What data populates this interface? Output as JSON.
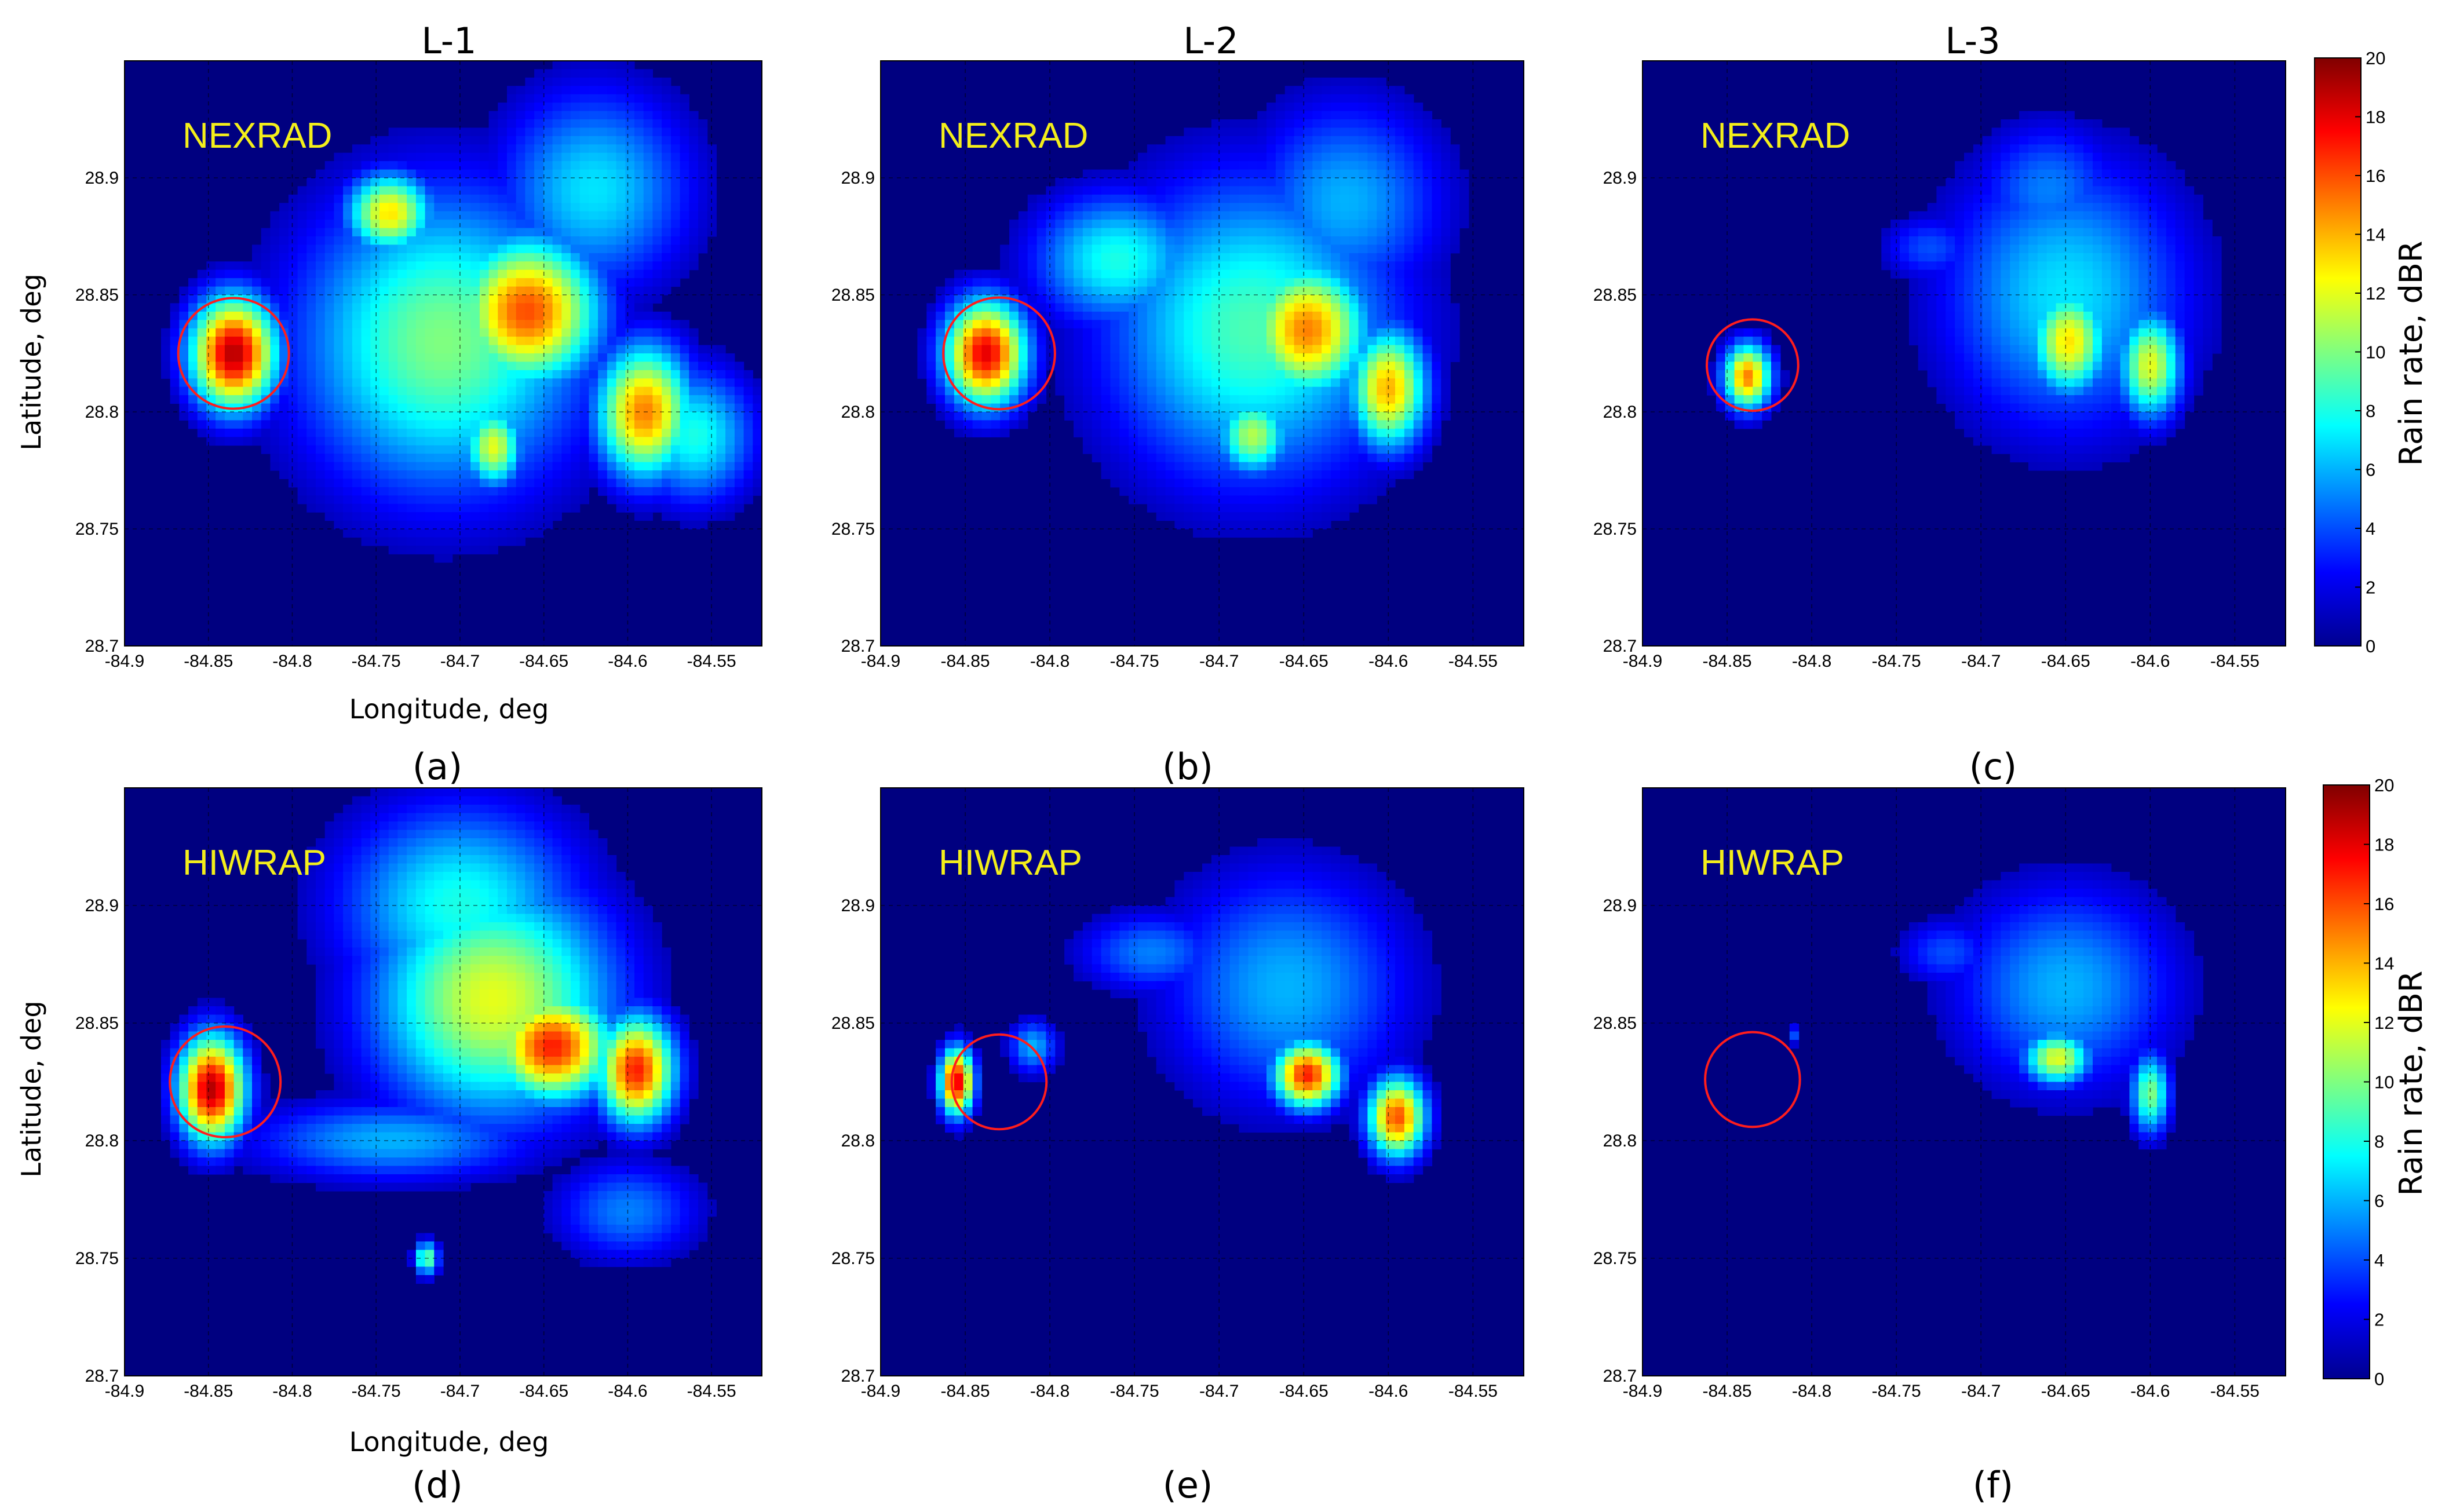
{
  "figure": {
    "columns": [
      "L-1",
      "L-2",
      "L-3"
    ],
    "panel_labels": [
      "(a)",
      "(b)",
      "(c)",
      "(d)",
      "(e)",
      "(f)"
    ],
    "sensors": [
      "NEXRAD",
      "NEXRAD",
      "NEXRAD",
      "HIWRAP",
      "HIWRAP",
      "HIWRAP"
    ],
    "xlabel": "Longitude, deg",
    "ylabel": "Latitude, deg",
    "colorbar_label": "Rain rate, dBR",
    "colorbar_ticks": [
      "0",
      "2",
      "4",
      "6",
      "8",
      "10",
      "12",
      "14",
      "16",
      "18",
      "20"
    ],
    "x_ticks": [
      "-84.9",
      "-84.85",
      "-84.8",
      "-84.75",
      "-84.7",
      "-84.65",
      "-84.6",
      "-84.55"
    ],
    "y_ticks": [
      "28.7",
      "28.75",
      "28.8",
      "28.85",
      "28.9"
    ]
  },
  "chart_data": [
    {
      "type": "heatmap",
      "panel": "(a)",
      "title": "L-1",
      "sensor": "NEXRAD",
      "xlabel": "Longitude, deg",
      "ylabel": "Latitude, deg",
      "xlim": [
        -84.9,
        -84.52
      ],
      "ylim": [
        28.7,
        28.95
      ],
      "zlim": [
        0,
        20
      ],
      "grid": true,
      "colorbar": "Rain rate, dBR",
      "circle": {
        "lon": -84.835,
        "lat": 28.825,
        "radius_deg": 0.033
      },
      "cells": [
        {
          "lon": -84.835,
          "lat": 28.825,
          "value": 19,
          "sx": 0.018,
          "sy": 0.017
        },
        {
          "lon": -84.742,
          "lat": 28.885,
          "value": 13,
          "sx": 0.018,
          "sy": 0.012
        },
        {
          "lon": -84.66,
          "lat": 28.843,
          "value": 16,
          "sx": 0.03,
          "sy": 0.022
        },
        {
          "lon": -84.59,
          "lat": 28.8,
          "value": 15,
          "sx": 0.02,
          "sy": 0.02
        },
        {
          "lon": -84.68,
          "lat": 28.785,
          "value": 12,
          "sx": 0.012,
          "sy": 0.012
        },
        {
          "lon": -84.71,
          "lat": 28.83,
          "value": 10,
          "sx": 0.06,
          "sy": 0.045
        },
        {
          "lon": -84.62,
          "lat": 28.895,
          "value": 7,
          "sx": 0.04,
          "sy": 0.03
        },
        {
          "lon": -84.56,
          "lat": 28.79,
          "value": 8,
          "sx": 0.025,
          "sy": 0.02
        }
      ]
    },
    {
      "type": "heatmap",
      "panel": "(b)",
      "title": "L-2",
      "sensor": "NEXRAD",
      "xlabel": "",
      "ylabel": "",
      "xlim": [
        -84.9,
        -84.52
      ],
      "ylim": [
        28.7,
        28.95
      ],
      "zlim": [
        0,
        20
      ],
      "grid": true,
      "circle": {
        "lon": -84.83,
        "lat": 28.825,
        "radius_deg": 0.033
      },
      "cells": [
        {
          "lon": -84.838,
          "lat": 28.825,
          "value": 18,
          "sx": 0.017,
          "sy": 0.016
        },
        {
          "lon": -84.648,
          "lat": 28.835,
          "value": 15,
          "sx": 0.025,
          "sy": 0.02
        },
        {
          "lon": -84.6,
          "lat": 28.81,
          "value": 14,
          "sx": 0.016,
          "sy": 0.018
        },
        {
          "lon": -84.68,
          "lat": 28.835,
          "value": 9,
          "sx": 0.06,
          "sy": 0.045
        },
        {
          "lon": -84.68,
          "lat": 28.79,
          "value": 11,
          "sx": 0.015,
          "sy": 0.012
        },
        {
          "lon": -84.625,
          "lat": 28.89,
          "value": 6,
          "sx": 0.04,
          "sy": 0.03
        },
        {
          "lon": -84.76,
          "lat": 28.865,
          "value": 8,
          "sx": 0.035,
          "sy": 0.02
        }
      ]
    },
    {
      "type": "heatmap",
      "panel": "(c)",
      "title": "L-3",
      "sensor": "NEXRAD",
      "xlabel": "",
      "ylabel": "",
      "xlim": [
        -84.9,
        -84.52
      ],
      "ylim": [
        28.7,
        28.95
      ],
      "zlim": [
        0,
        20
      ],
      "grid": true,
      "colorbar": "Rain rate, dBR",
      "circle": {
        "lon": -84.835,
        "lat": 28.82,
        "radius_deg": 0.027
      },
      "cells": [
        {
          "lon": -84.838,
          "lat": 28.815,
          "value": 15,
          "sx": 0.01,
          "sy": 0.01
        },
        {
          "lon": -84.648,
          "lat": 28.83,
          "value": 13,
          "sx": 0.016,
          "sy": 0.016
        },
        {
          "lon": -84.6,
          "lat": 28.82,
          "value": 12,
          "sx": 0.013,
          "sy": 0.016
        },
        {
          "lon": -84.65,
          "lat": 28.85,
          "value": 7,
          "sx": 0.05,
          "sy": 0.04
        },
        {
          "lon": -84.66,
          "lat": 28.895,
          "value": 5,
          "sx": 0.03,
          "sy": 0.02
        },
        {
          "lon": -84.73,
          "lat": 28.87,
          "value": 4,
          "sx": 0.02,
          "sy": 0.01
        }
      ]
    },
    {
      "type": "heatmap",
      "panel": "(d)",
      "title": "",
      "sensor": "HIWRAP",
      "xlabel": "Longitude, deg",
      "ylabel": "Latitude, deg",
      "xlim": [
        -84.9,
        -84.52
      ],
      "ylim": [
        28.7,
        28.95
      ],
      "zlim": [
        0,
        20
      ],
      "grid": true,
      "circle": {
        "lon": -84.84,
        "lat": 28.825,
        "radius_deg": 0.033
      },
      "cells": [
        {
          "lon": -84.848,
          "lat": 28.822,
          "value": 19,
          "sx": 0.014,
          "sy": 0.016
        },
        {
          "lon": -84.645,
          "lat": 28.84,
          "value": 17,
          "sx": 0.025,
          "sy": 0.016
        },
        {
          "lon": -84.595,
          "lat": 28.83,
          "value": 17,
          "sx": 0.016,
          "sy": 0.016
        },
        {
          "lon": -84.68,
          "lat": 28.86,
          "value": 12,
          "sx": 0.05,
          "sy": 0.035
        },
        {
          "lon": -84.7,
          "lat": 28.9,
          "value": 8,
          "sx": 0.05,
          "sy": 0.03
        },
        {
          "lon": -84.74,
          "lat": 28.8,
          "value": 6,
          "sx": 0.06,
          "sy": 0.012
        },
        {
          "lon": -84.72,
          "lat": 28.75,
          "value": 10,
          "sx": 0.005,
          "sy": 0.005
        },
        {
          "lon": -84.6,
          "lat": 28.77,
          "value": 5,
          "sx": 0.03,
          "sy": 0.015
        }
      ]
    },
    {
      "type": "heatmap",
      "panel": "(e)",
      "title": "",
      "sensor": "HIWRAP",
      "xlabel": "",
      "ylabel": "",
      "xlim": [
        -84.9,
        -84.52
      ],
      "ylim": [
        28.7,
        28.95
      ],
      "zlim": [
        0,
        20
      ],
      "grid": true,
      "circle": {
        "lon": -84.83,
        "lat": 28.825,
        "radius_deg": 0.028
      },
      "cells": [
        {
          "lon": -84.855,
          "lat": 28.825,
          "value": 18,
          "sx": 0.007,
          "sy": 0.01
        },
        {
          "lon": -84.648,
          "lat": 28.828,
          "value": 17,
          "sx": 0.014,
          "sy": 0.01
        },
        {
          "lon": -84.595,
          "lat": 28.81,
          "value": 16,
          "sx": 0.012,
          "sy": 0.012
        },
        {
          "lon": -84.66,
          "lat": 28.865,
          "value": 6,
          "sx": 0.05,
          "sy": 0.035
        },
        {
          "lon": -84.74,
          "lat": 28.88,
          "value": 5,
          "sx": 0.03,
          "sy": 0.012
        },
        {
          "lon": -84.81,
          "lat": 28.84,
          "value": 6,
          "sx": 0.01,
          "sy": 0.008
        }
      ]
    },
    {
      "type": "heatmap",
      "panel": "(f)",
      "title": "",
      "sensor": "HIWRAP",
      "xlabel": "",
      "ylabel": "",
      "xlim": [
        -84.9,
        -84.52
      ],
      "ylim": [
        28.7,
        28.95
      ],
      "zlim": [
        0,
        20
      ],
      "grid": true,
      "colorbar": "Rain rate, dBR",
      "circle": {
        "lon": -84.835,
        "lat": 28.826,
        "radius_deg": 0.028
      },
      "cells": [
        {
          "lon": -84.655,
          "lat": 28.835,
          "value": 12,
          "sx": 0.014,
          "sy": 0.008
        },
        {
          "lon": -84.6,
          "lat": 28.82,
          "value": 10,
          "sx": 0.008,
          "sy": 0.012
        },
        {
          "lon": -84.65,
          "lat": 28.865,
          "value": 6,
          "sx": 0.045,
          "sy": 0.03
        },
        {
          "lon": -84.72,
          "lat": 28.88,
          "value": 4,
          "sx": 0.02,
          "sy": 0.01
        },
        {
          "lon": -84.81,
          "lat": 28.845,
          "value": 4,
          "sx": 0.003,
          "sy": 0.003
        }
      ]
    }
  ]
}
